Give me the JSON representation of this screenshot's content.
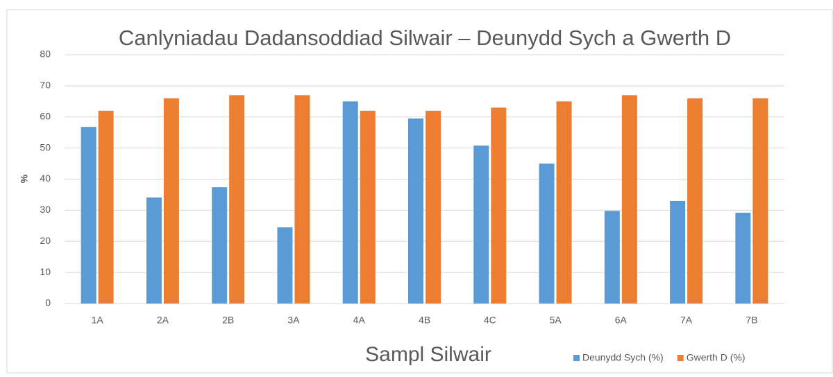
{
  "chart_data": {
    "type": "bar",
    "title": "Canlyniadau Dadansoddiad Silwair – Deunydd Sych a Gwerth D",
    "x_label": "Sampl Silwair",
    "y_label": "%",
    "categories": [
      "1A",
      "2A",
      "2B",
      "3A",
      "4A",
      "4B",
      "4C",
      "5A",
      "6A",
      "7A",
      "7B"
    ],
    "series": [
      {
        "name": "Deunydd Sych (%)",
        "color": "#5b9bd5",
        "values": [
          56.8,
          34.1,
          37.4,
          24.5,
          65.0,
          59.5,
          50.8,
          45.0,
          29.8,
          33.0,
          29.2
        ]
      },
      {
        "name": "Gwerth D (%)",
        "color": "#ed7d31",
        "values": [
          62,
          66,
          67,
          67,
          62,
          62,
          63,
          65,
          67,
          66,
          66
        ]
      }
    ],
    "ylim": [
      0,
      80
    ],
    "yticks": [
      0,
      10,
      20,
      30,
      40,
      50,
      60,
      70,
      80
    ],
    "grid": true,
    "legend": "bottom-right"
  }
}
